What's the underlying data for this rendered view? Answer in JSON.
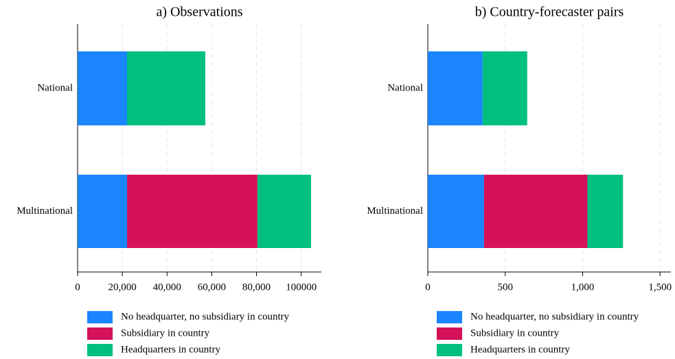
{
  "chart_data": [
    {
      "type": "bar",
      "orientation": "horizontal",
      "title": "a) Observations",
      "categories": [
        "National",
        "Multinational"
      ],
      "series": [
        {
          "name": "No headquarter, no subsidiary in country",
          "color": "#1a85ff",
          "values": [
            22100,
            22100
          ]
        },
        {
          "name": "Subsidiary in country",
          "color": "#d41159",
          "values": [
            0,
            58300
          ]
        },
        {
          "name": "Headquarters in country",
          "color": "#00bf7f",
          "values": [
            35000,
            24000
          ]
        }
      ],
      "xlim": [
        0,
        109000
      ],
      "xticks": [
        0,
        {
          "value": 20000,
          "label": "20,000"
        },
        {
          "value": 40000,
          "label": "40,000"
        },
        {
          "value": 60000,
          "label": "60,000"
        },
        {
          "value": 80000,
          "label": "80,000"
        },
        100000
      ],
      "grid": true,
      "legend": "bottom"
    },
    {
      "type": "bar",
      "orientation": "horizontal",
      "title": "b) Country-forecaster pairs",
      "categories": [
        "National",
        "Multinational"
      ],
      "series": [
        {
          "name": "No headquarter, no subsidiary in country",
          "color": "#1a85ff",
          "values": [
            354,
            363
          ]
        },
        {
          "name": "Subsidiary in country",
          "color": "#d41159",
          "values": [
            0,
            668
          ]
        },
        {
          "name": "Headquarters in country",
          "color": "#00bf7f",
          "values": [
            288,
            230
          ]
        }
      ],
      "xlim": [
        0,
        1570
      ],
      "xticks": [
        0,
        500,
        {
          "value": 1000,
          "label": "1,000"
        },
        {
          "value": 1500,
          "label": "1,500"
        }
      ],
      "grid": true,
      "legend": "bottom"
    }
  ]
}
